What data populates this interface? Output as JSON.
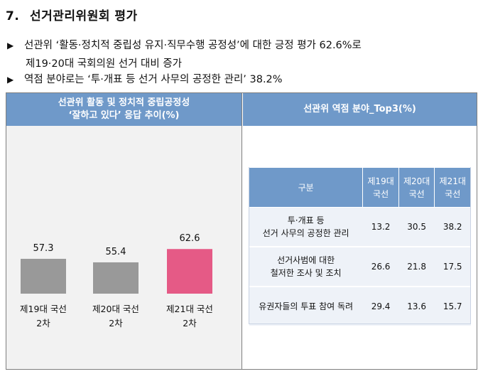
{
  "section": {
    "number": "7.",
    "title": "선거관리위원회 평가"
  },
  "bullets": [
    {
      "marker": "▶",
      "text": "선관위 ‘활동·정치적 중립성 유지·직무수행 공정성’에 대한 긍정 평가 62.6%로"
    },
    {
      "marker": "",
      "text": "제19·20대 국회의원 선거 대비 증가"
    },
    {
      "marker": "▶",
      "text": "역점 분야로는 ‘투·개표 등 선거 사무의 공정한 관리’ 38.2%"
    }
  ],
  "left_panel": {
    "title_line1": "선관위 활동 및 정치적 중립공정성",
    "title_line2": "‘잘하고 있다’ 응답 추이(%)"
  },
  "chart_data": {
    "type": "bar",
    "title": "선관위 활동 및 정치적 중립공정성 ‘잘하고 있다’ 응답 추이(%)",
    "categories": [
      [
        "제19대 국선",
        "2차"
      ],
      [
        "제20대 국선",
        "2차"
      ],
      [
        "제21대 국선",
        "2차"
      ]
    ],
    "values": [
      57.3,
      55.4,
      62.6
    ],
    "value_labels": [
      "57.3",
      "55.4",
      "62.6"
    ],
    "colors": [
      "#999999",
      "#999999",
      "#e55a86"
    ],
    "ylim": [
      0,
      70
    ],
    "xlabel": "",
    "ylabel": "",
    "grid": false
  },
  "right_panel": {
    "title": "선관위 역점 분야_Top3(%)",
    "table": {
      "header": {
        "item": "구분",
        "cols": [
          [
            "제19대",
            "국선"
          ],
          [
            "제20대",
            "국선"
          ],
          [
            "제21대",
            "국선"
          ]
        ]
      },
      "rows": [
        {
          "item": [
            "투·개표 등",
            "선거 사무의 공정한 관리"
          ],
          "values": [
            "13.2",
            "30.5",
            "38.2"
          ]
        },
        {
          "item": [
            "선거사범에 대한",
            "철저한 조사 및 조치"
          ],
          "values": [
            "26.6",
            "21.8",
            "17.5"
          ]
        },
        {
          "item": [
            "유권자들의 투표 참여 독려"
          ],
          "values": [
            "29.4",
            "13.6",
            "15.7"
          ]
        }
      ]
    }
  }
}
